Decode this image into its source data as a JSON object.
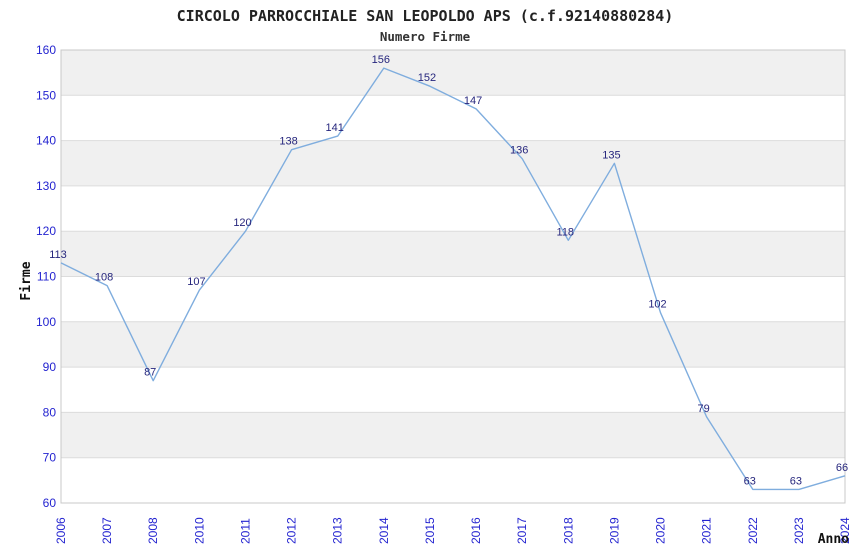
{
  "chart_data": {
    "type": "line",
    "title": "CIRCOLO PARROCCHIALE SAN LEOPOLDO APS (c.f.92140880284)",
    "subtitle": "Numero Firme",
    "xlabel": "Anno",
    "ylabel": "Firme",
    "categories": [
      "2006",
      "2007",
      "2008",
      "2010",
      "2011",
      "2012",
      "2013",
      "2014",
      "2015",
      "2016",
      "2017",
      "2018",
      "2019",
      "2020",
      "2021",
      "2022",
      "2023",
      "2024"
    ],
    "values": [
      113,
      108,
      87,
      107,
      120,
      138,
      141,
      156,
      152,
      147,
      136,
      118,
      135,
      102,
      79,
      63,
      63,
      66
    ],
    "ylim": [
      60,
      160
    ],
    "ytick_step": 10,
    "yticks": [
      60,
      70,
      80,
      90,
      100,
      110,
      120,
      130,
      140,
      150,
      160
    ],
    "grid": "horizontal-lines-with-alternating-bands",
    "legend": "none",
    "markers": "none",
    "colors": {
      "line": "#7fadde",
      "value_label": "#26267d",
      "tick_label": "#2424d0",
      "axis_title": "#111111",
      "title": "#222222",
      "subtitle": "#333333",
      "band": "#f0f0f0",
      "gridline": "#dcdcdc",
      "plot_border": "#c8c8c8",
      "background": "#ffffff"
    }
  }
}
